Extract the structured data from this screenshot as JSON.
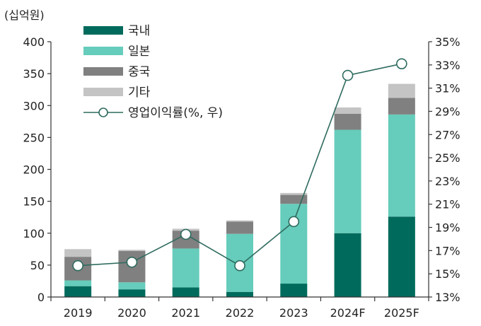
{
  "chart_data": {
    "type": "bar",
    "stacked": true,
    "categories": [
      "2019",
      "2020",
      "2021",
      "2022",
      "2023",
      "2024F",
      "2025F"
    ],
    "left_axis": {
      "unit_label": "(십억원)",
      "ylim": [
        0,
        400
      ],
      "ticks": [
        "0",
        "50",
        "100",
        "150",
        "200",
        "250",
        "300",
        "350",
        "400"
      ]
    },
    "right_axis": {
      "ylim": [
        13,
        35
      ],
      "ticks": [
        "13%",
        "15%",
        "17%",
        "19%",
        "21%",
        "23%",
        "25%",
        "27%",
        "29%",
        "31%",
        "33%",
        "35%"
      ]
    },
    "series": [
      {
        "name": "국내",
        "type": "bar",
        "color": "#006B5C",
        "values": [
          17,
          12,
          15,
          8,
          21,
          100,
          126
        ]
      },
      {
        "name": "일본",
        "type": "bar",
        "color": "#66CCBB",
        "values": [
          9,
          11,
          61,
          91,
          125,
          162,
          160
        ]
      },
      {
        "name": "중국",
        "type": "bar",
        "color": "#808080",
        "values": [
          37,
          49,
          28,
          19,
          14,
          25,
          26
        ]
      },
      {
        "name": "기타",
        "type": "bar",
        "color": "#C4C4C4",
        "values": [
          12,
          2,
          3,
          2,
          3,
          10,
          22
        ]
      },
      {
        "name": "영업이익률(%, 우)",
        "type": "line",
        "axis": "right",
        "color": "#2E6B5E",
        "values": [
          15.7,
          16.0,
          18.4,
          15.7,
          19.5,
          32.1,
          33.1
        ]
      }
    ],
    "legend_position": "top-left",
    "grid": false
  }
}
